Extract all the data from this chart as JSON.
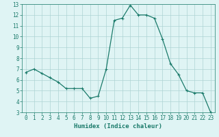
{
  "x": [
    0,
    1,
    2,
    3,
    4,
    5,
    6,
    7,
    8,
    9,
    10,
    11,
    12,
    13,
    14,
    15,
    16,
    17,
    18,
    19,
    20,
    21,
    22,
    23
  ],
  "y": [
    6.7,
    7.0,
    6.6,
    6.2,
    5.8,
    5.2,
    5.2,
    5.2,
    4.3,
    4.5,
    7.0,
    11.5,
    11.7,
    12.9,
    12.0,
    12.0,
    11.7,
    9.8,
    7.5,
    6.5,
    5.0,
    4.8,
    4.8,
    3.0
  ],
  "line_color": "#1a7a6a",
  "marker": "+",
  "marker_size": 3,
  "marker_lw": 0.8,
  "bg_color": "#dff4f4",
  "grid_color": "#aed4d4",
  "xlabel": "Humidex (Indice chaleur)",
  "xlim": [
    -0.5,
    23.5
  ],
  "ylim": [
    3,
    13
  ],
  "yticks": [
    3,
    4,
    5,
    6,
    7,
    8,
    9,
    10,
    11,
    12,
    13
  ],
  "xticks": [
    0,
    1,
    2,
    3,
    4,
    5,
    6,
    7,
    8,
    9,
    10,
    11,
    12,
    13,
    14,
    15,
    16,
    17,
    18,
    19,
    20,
    21,
    22,
    23
  ],
  "tick_fontsize": 5.5,
  "xlabel_fontsize": 6.5,
  "axis_color": "#1a7a6a",
  "line_width": 0.9
}
